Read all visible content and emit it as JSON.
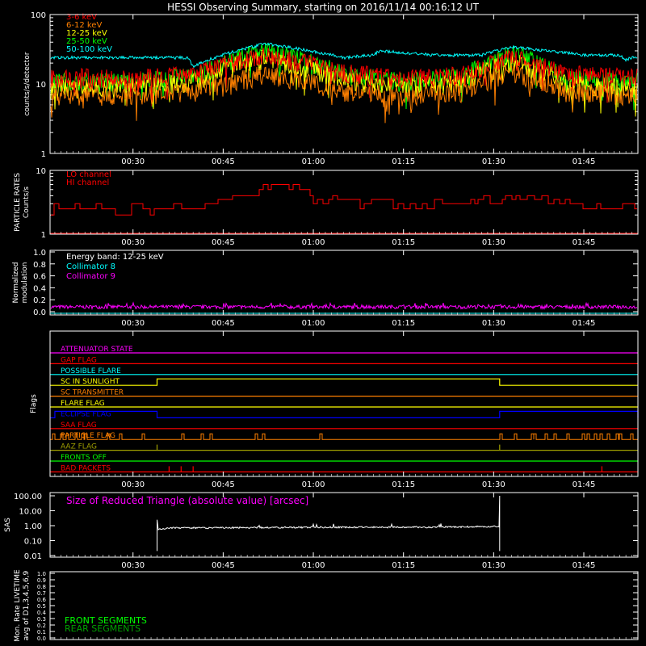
{
  "title": "HESSI Observing Summary, starting on 2016/11/14 00:16:12 UT",
  "time_ticks": [
    "00:30",
    "00:45",
    "01:00",
    "01:15",
    "01:30",
    "01:45"
  ],
  "colors": {
    "red": "#ff0000",
    "orange": "#ff8000",
    "yellow": "#ffff00",
    "green": "#00ff00",
    "cyan": "#00ffff",
    "magenta": "#ff00ff",
    "blue": "#0000ff",
    "olive": "#a0a000",
    "white": "#ffffff",
    "darkgreen": "#00a000"
  },
  "chart_data": [
    {
      "type": "line",
      "panel": "count-rates",
      "ylabel": "counts/s/detector",
      "scale": "log",
      "ylim": [
        1,
        100
      ],
      "yticks": [
        "1",
        "10",
        "100"
      ],
      "x_range": [
        "00:16:12",
        "01:54:00"
      ],
      "series": [
        {
          "name": "3-6 keV",
          "color": "#ff0000",
          "x": [
            "00:17",
            "00:30",
            "00:40",
            "00:52",
            "01:05",
            "01:15",
            "01:25",
            "01:33",
            "01:42",
            "01:53"
          ],
          "values": [
            13,
            12,
            14,
            26,
            15,
            12,
            14,
            24,
            14,
            13
          ]
        },
        {
          "name": "6-12 keV",
          "color": "#ff8000",
          "x": [
            "00:17",
            "00:30",
            "00:40",
            "00:52",
            "01:05",
            "01:15",
            "01:25",
            "01:33",
            "01:42",
            "01:53"
          ],
          "values": [
            7,
            7,
            8,
            14,
            8,
            7,
            8,
            15,
            8,
            7
          ]
        },
        {
          "name": "12-25 keV",
          "color": "#ffff00",
          "x": [
            "00:17",
            "00:30",
            "00:40",
            "00:52",
            "01:05",
            "01:15",
            "01:25",
            "01:33",
            "01:42",
            "01:53"
          ],
          "values": [
            9,
            9,
            11,
            24,
            12,
            9,
            11,
            22,
            10,
            9
          ]
        },
        {
          "name": "25-50 keV",
          "color": "#00ff00",
          "x": [
            "00:17",
            "00:30",
            "00:40",
            "00:52",
            "01:05",
            "01:15",
            "01:25",
            "01:33",
            "01:42",
            "01:53"
          ],
          "values": [
            11,
            11,
            13,
            30,
            14,
            11,
            13,
            28,
            12,
            11
          ]
        },
        {
          "name": "50-100 keV",
          "color": "#00ffff",
          "x": [
            "00:17",
            "00:30",
            "00:39",
            "00:40",
            "00:52",
            "01:05",
            "01:10",
            "01:11",
            "01:20",
            "01:28",
            "01:33",
            "01:45",
            "01:51",
            "01:52",
            "01:53"
          ],
          "values": [
            24,
            24,
            24,
            18,
            38,
            24,
            26,
            30,
            26,
            26,
            34,
            26,
            26,
            22,
            24
          ]
        }
      ]
    },
    {
      "type": "line",
      "panel": "particle-rates",
      "ylabel": "PARTICLE RATES Counts/s",
      "scale": "log",
      "ylim": [
        1,
        10
      ],
      "yticks": [
        "1",
        "10"
      ],
      "series": [
        {
          "name": "LO channel",
          "color": "#ff0000",
          "x": [
            "00:17",
            "01:54"
          ],
          "values": [
            1,
            1
          ]
        },
        {
          "name": "HI channel",
          "color": "#ff0000",
          "x": [
            "00:17",
            "00:38",
            "00:45",
            "00:50",
            "00:55",
            "01:00",
            "01:10",
            "01:25",
            "01:30",
            "01:35",
            "01:45",
            "01:54"
          ],
          "values": [
            2.5,
            2.5,
            3.5,
            4.5,
            6,
            3.5,
            3,
            3,
            3.5,
            4,
            3,
            2.5
          ]
        }
      ]
    },
    {
      "type": "line",
      "panel": "modulation",
      "ylabel": "Normalized modulation",
      "ylim": [
        0,
        1
      ],
      "yticks": [
        "0.0",
        "0.2",
        "0.4",
        "0.6",
        "0.8",
        "1.0"
      ],
      "annotation": "Energy band: 12-25 keV",
      "series": [
        {
          "name": "Collimator 8",
          "color": "#00ffff",
          "x": [
            "00:17",
            "01:54"
          ],
          "values": [
            0.0,
            0.0
          ]
        },
        {
          "name": "Collimator 9",
          "color": "#ff00ff",
          "x": [
            "00:17",
            "01:54"
          ],
          "values": [
            0.1,
            0.1
          ]
        }
      ]
    },
    {
      "type": "line",
      "panel": "flags",
      "ylabel": "Flags",
      "series": [
        {
          "name": "ATTENUATOR STATE",
          "color": "#ff00ff"
        },
        {
          "name": "GAP FLAG",
          "color": "#ff0000"
        },
        {
          "name": "POSSIBLE FLARE",
          "color": "#00ffff"
        },
        {
          "name": "SC IN SUNLIGHT",
          "color": "#ffff00",
          "high_intervals": [
            [
              "00:34",
              "01:31"
            ]
          ]
        },
        {
          "name": "SC TRANSMITTER",
          "color": "#ff8000"
        },
        {
          "name": "FLARE FLAG",
          "color": "#ffff00"
        },
        {
          "name": "ECLIPSE FLAG",
          "color": "#0000ff",
          "high_intervals": [
            [
              "00:17",
              "00:34"
            ],
            [
              "01:31",
              "01:54"
            ]
          ]
        },
        {
          "name": "SAA FLAG",
          "color": "#ff0000"
        },
        {
          "name": "PARTICLE FLAG",
          "color": "#ff8000",
          "noisy": true
        },
        {
          "name": "AAZ FLAG",
          "color": "#a0a000",
          "spikes": [
            "00:34",
            "01:31"
          ]
        },
        {
          "name": "FRONTS OFF",
          "color": "#00ff00"
        },
        {
          "name": "BAD PACKETS",
          "color": "#ff0000",
          "spikes": [
            "00:36",
            "00:38",
            "00:40",
            "01:48"
          ]
        }
      ]
    },
    {
      "type": "line",
      "panel": "sas",
      "ylabel": "SAS",
      "annotation": "Size of Reduced Triangle (absolute value) [arcsec]",
      "scale": "log",
      "ylim": [
        0.01,
        100
      ],
      "yticks": [
        "0.01",
        "0.10",
        "1.00",
        "10.00",
        "100.00"
      ],
      "series": [
        {
          "name": "Size of Reduced Triangle",
          "color": "#ffffff",
          "x": [
            "00:34",
            "00:36",
            "00:50",
            "01:05",
            "01:20",
            "01:31"
          ],
          "values": [
            0.6,
            0.7,
            0.75,
            0.8,
            0.8,
            0.9
          ]
        }
      ]
    },
    {
      "type": "line",
      "panel": "livetime",
      "ylabel": "Mon. Rate LIVETIME avg of D1,3,4,5,6,9",
      "ylim": [
        0,
        1
      ],
      "yticks": [
        "0.0",
        "0.1",
        "0.2",
        "0.3",
        "0.4",
        "0.5",
        "0.6",
        "0.7",
        "0.8",
        "0.9",
        "1.0"
      ],
      "series": [
        {
          "name": "FRONT SEGMENTS",
          "color": "#00ff00"
        },
        {
          "name": "REAR SEGMENTS",
          "color": "#00a000"
        }
      ]
    }
  ]
}
